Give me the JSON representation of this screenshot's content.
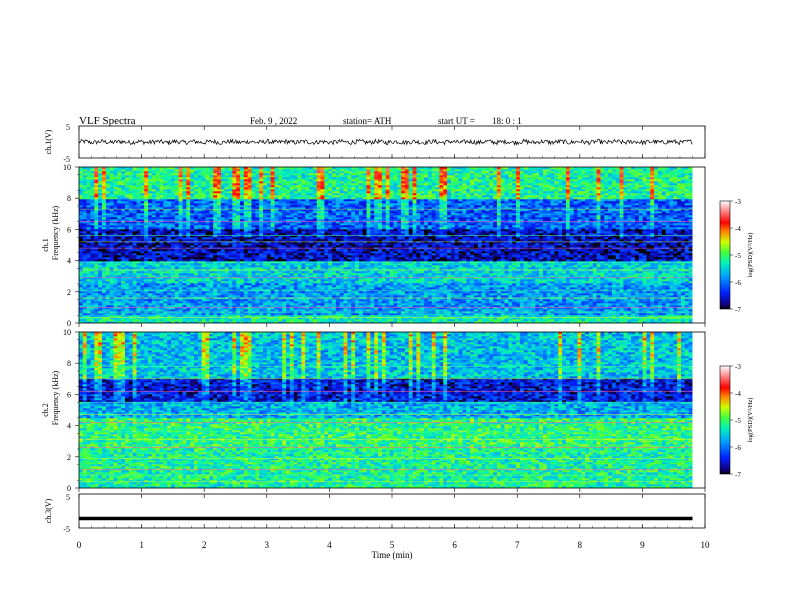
{
  "header": {
    "title": "VLF Spectra",
    "date": "Feb. 9 , 2022",
    "station": "station= ATH",
    "start": "start UT =",
    "start_time": "18: 0 : 1"
  },
  "panels": {
    "ch1": {
      "ylabel": "ch.1(V)",
      "ymax": "5",
      "ymin": "-5"
    },
    "spec1": {
      "ylabel_channel": "ch.1",
      "ylabel": "Frequency (kHz)",
      "yticks": [
        "0",
        "2",
        "4",
        "6",
        "8",
        "10"
      ]
    },
    "spec2": {
      "ylabel_channel": "ch.2",
      "ylabel": "Frequency (kHz)",
      "yticks": [
        "0",
        "2",
        "4",
        "6",
        "8",
        "10"
      ]
    },
    "ch3": {
      "ylabel": "ch.3(V)",
      "ymax": "5",
      "ymin": "-5"
    }
  },
  "xaxis": {
    "label": "Time (min)",
    "ticks": [
      "0",
      "1",
      "2",
      "3",
      "4",
      "5",
      "6",
      "7",
      "8",
      "9",
      "10"
    ]
  },
  "colorbar": {
    "label": "log(PSD)(V²/Hz)",
    "ticks": [
      "-3",
      "-4",
      "-5",
      "-6",
      "-7"
    ]
  },
  "chart_data": [
    {
      "type": "line",
      "name": "ch1-waveform",
      "xlabel": "Time (min)",
      "ylabel": "ch.1(V)",
      "xlim": [
        0,
        10
      ],
      "ylim": [
        -5,
        5
      ],
      "data_end_min": 9.8,
      "mean_level": 0,
      "amplitude_approx": 1.0
    },
    {
      "type": "heatmap",
      "name": "ch1-spectrogram",
      "xlabel": "Time (min)",
      "ylabel": "Frequency (kHz)",
      "xlim": [
        0,
        10
      ],
      "ylim": [
        0,
        10
      ],
      "color_range": [
        -7,
        -3
      ],
      "data_end_min": 9.8,
      "bands_kHz_approx": [
        {
          "range": [
            0,
            0.5
          ],
          "level": -5.3
        },
        {
          "range": [
            0.5,
            2.5
          ],
          "level": -5.8
        },
        {
          "range": [
            2.5,
            4.0
          ],
          "level": -5.5
        },
        {
          "range": [
            4.0,
            6.0
          ],
          "level": -6.6
        },
        {
          "range": [
            6.0,
            8.0
          ],
          "level": -6.1
        },
        {
          "range": [
            8.0,
            10.0
          ],
          "level": -5.2
        }
      ]
    },
    {
      "type": "heatmap",
      "name": "ch2-spectrogram",
      "xlabel": "Time (min)",
      "ylabel": "Frequency (kHz)",
      "xlim": [
        0,
        10
      ],
      "ylim": [
        0,
        10
      ],
      "color_range": [
        -7,
        -3
      ],
      "data_end_min": 9.8,
      "bands_kHz_approx": [
        {
          "range": [
            0,
            2.5
          ],
          "level": -5.2
        },
        {
          "range": [
            2.5,
            4.5
          ],
          "level": -5.1
        },
        {
          "range": [
            4.5,
            5.5
          ],
          "level": -5.7
        },
        {
          "range": [
            5.5,
            7.0
          ],
          "level": -6.5
        },
        {
          "range": [
            7.0,
            10.0
          ],
          "level": -5.6
        }
      ]
    },
    {
      "type": "line",
      "name": "ch3-waveform",
      "xlabel": "Time (min)",
      "ylabel": "ch.3(V)",
      "xlim": [
        0,
        10
      ],
      "ylim": [
        -5,
        5
      ],
      "data_end_min": 9.8,
      "mean_level": -2.2,
      "amplitude_approx": 0.1
    }
  ]
}
